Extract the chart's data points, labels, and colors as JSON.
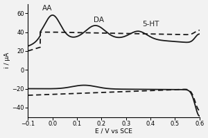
{
  "title": "",
  "xlabel": "E / V vs SCE",
  "ylabel": "i / μA",
  "xlim": [
    -0.1,
    0.6
  ],
  "ylim": [
    -50,
    70
  ],
  "xticks": [
    -0.1,
    0.0,
    0.1,
    0.2,
    0.3,
    0.4,
    0.5,
    0.6
  ],
  "yticks": [
    -40,
    -20,
    0,
    20,
    40,
    60
  ],
  "AA_label": "AA",
  "DA_label": "DA",
  "HT_label": "5-HT",
  "solid_color": "#1a1a1a",
  "dashed_color": "#1a1a1a",
  "background_color": "#f2f2f2"
}
